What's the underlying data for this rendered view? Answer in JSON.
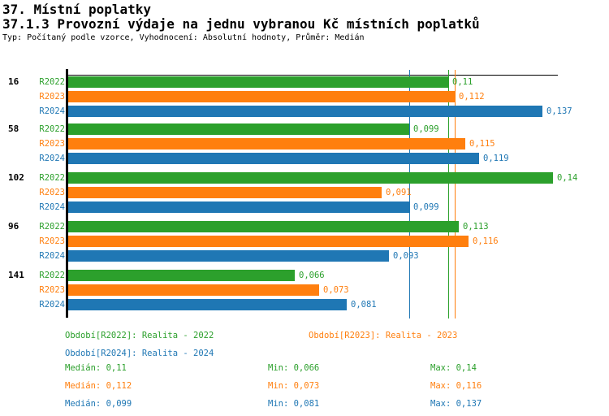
{
  "page": {
    "title": "37. Místní poplatky",
    "subtitle": "37.1.3 Provozní výdaje na jednu vybranou Kč místních poplatků",
    "meta": "Typ: Počítaný podle vzorce, Vyhodnocení: Absolutní hodnoty, Průměr: Medián"
  },
  "colors": {
    "r2022": "#2ca02c",
    "r2023": "#ff7f0e",
    "r2024": "#1f77b4",
    "axis": "#000000",
    "background": "#ffffff"
  },
  "chart_data": {
    "type": "bar",
    "orientation": "horizontal",
    "title": "37.1.3 Provozní výdaje na jednu vybranou Kč místních poplatků",
    "categories": [
      "16",
      "58",
      "102",
      "96",
      "141"
    ],
    "series": [
      {
        "name": "R2022",
        "color_key": "r2022",
        "values": [
          0.11,
          0.099,
          0.14,
          0.113,
          0.066
        ],
        "value_labels": [
          "0,11",
          "0,099",
          "0,14",
          "0,113",
          "0,066"
        ],
        "median": 0.11,
        "median_label": "0,11",
        "min_label": "0,066",
        "max_label": "0,14"
      },
      {
        "name": "R2023",
        "color_key": "r2023",
        "values": [
          0.112,
          0.115,
          0.091,
          0.116,
          0.073
        ],
        "value_labels": [
          "0,112",
          "0,115",
          "0,091",
          "0,116",
          "0,073"
        ],
        "median": 0.112,
        "median_label": "0,112",
        "min_label": "0,073",
        "max_label": "0,116"
      },
      {
        "name": "R2024",
        "color_key": "r2024",
        "values": [
          0.137,
          0.119,
          0.099,
          0.093,
          0.081
        ],
        "value_labels": [
          "0,137",
          "0,119",
          "0,099",
          "0,093",
          "0,081"
        ],
        "median": 0.099,
        "median_label": "0,099",
        "min_label": "0,081",
        "max_label": "0,137"
      }
    ],
    "xlim": [
      0,
      0.145
    ],
    "reference_lines": "series medians drawn as vertical lines in series color",
    "legend_position": "bottom",
    "grid": false
  },
  "legend": {
    "entries": [
      {
        "text": "Období[R2022]: Realita - 2022",
        "color_key": "r2022"
      },
      {
        "text": "Období[R2023]: Realita - 2023",
        "color_key": "r2023"
      },
      {
        "text": "Období[R2024]: Realita - 2024",
        "color_key": "r2024"
      }
    ]
  },
  "stats": {
    "median_prefix": "Medián:",
    "min_prefix": "Min:",
    "max_prefix": "Max:",
    "rows": [
      {
        "color_key": "r2022",
        "median": "0,11",
        "min": "0,066",
        "max": "0,14"
      },
      {
        "color_key": "r2023",
        "median": "0,112",
        "min": "0,073",
        "max": "0,116"
      },
      {
        "color_key": "r2024",
        "median": "0,099",
        "min": "0,081",
        "max": "0,137"
      }
    ]
  }
}
